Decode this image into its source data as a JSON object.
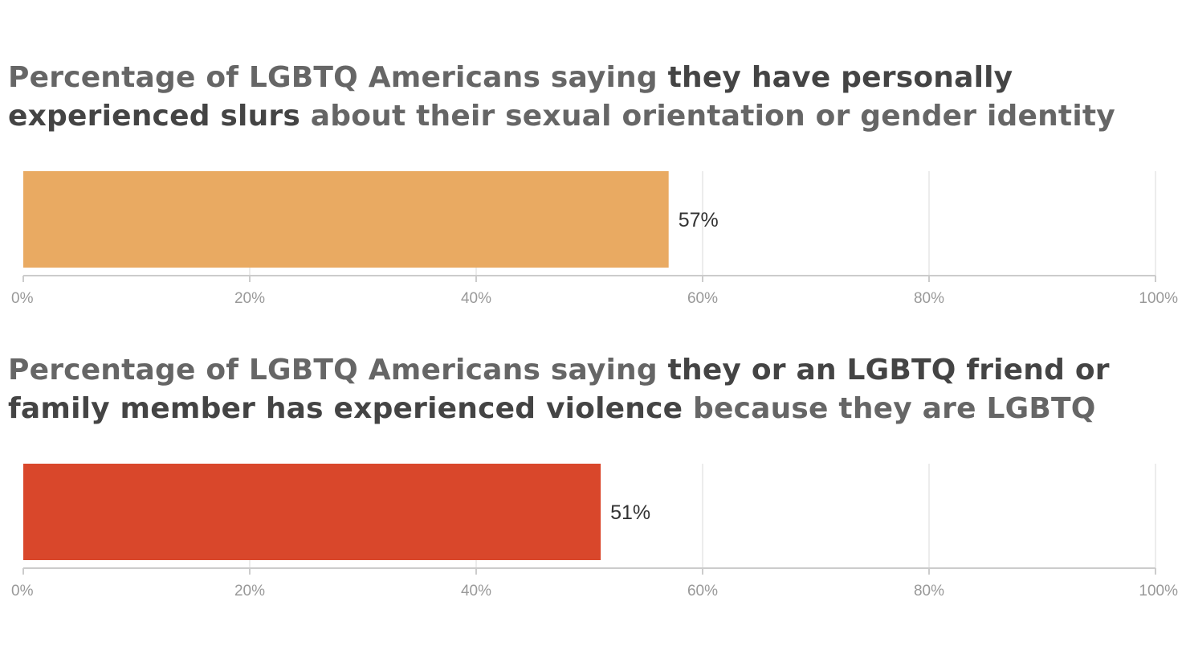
{
  "charts": [
    {
      "title_parts": [
        {
          "text": "Percentage of LGBTQ Americans saying ",
          "bold": false
        },
        {
          "text": "they have personally experienced slurs",
          "bold": true
        },
        {
          "text": " about their sexual orientation or gender identity",
          "bold": false
        }
      ]
    },
    {
      "title_parts": [
        {
          "text": "Percentage of LGBTQ Americans saying ",
          "bold": false
        },
        {
          "text": "they or an LGBTQ friend or family member has experienced violence",
          "bold": true
        },
        {
          "text": " because they are LGBTQ",
          "bold": false
        }
      ]
    }
  ],
  "chart_data": [
    {
      "type": "bar",
      "orientation": "horizontal",
      "title": "Percentage of LGBTQ Americans saying they have personally experienced slurs about their sexual orientation or gender identity",
      "values": [
        57
      ],
      "value_labels": [
        "57%"
      ],
      "color": "#e9aa62",
      "xlim": [
        0,
        100
      ],
      "x_ticks": [
        0,
        20,
        40,
        60,
        80,
        100
      ],
      "x_tick_labels": [
        "0%",
        "20%",
        "40%",
        "60%",
        "80%",
        "100%"
      ],
      "grid": true
    },
    {
      "type": "bar",
      "orientation": "horizontal",
      "title": "Percentage of LGBTQ Americans saying they or an LGBTQ friend or family member has experienced violence because they are LGBTQ",
      "values": [
        51
      ],
      "value_labels": [
        "51%"
      ],
      "color": "#d9472b",
      "xlim": [
        0,
        100
      ],
      "x_ticks": [
        0,
        20,
        40,
        60,
        80,
        100
      ],
      "x_tick_labels": [
        "0%",
        "20%",
        "40%",
        "60%",
        "80%",
        "100%"
      ],
      "grid": true
    }
  ]
}
